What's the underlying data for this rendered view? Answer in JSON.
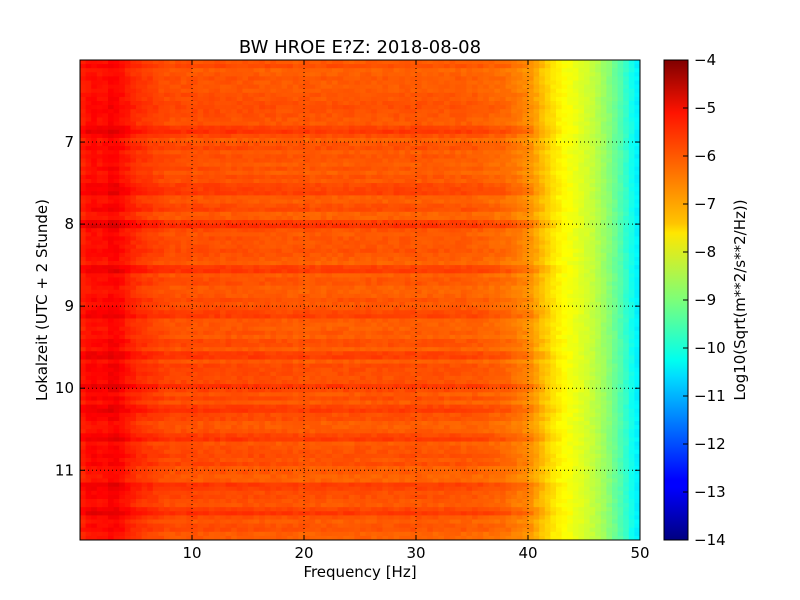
{
  "chart_data": {
    "type": "heatmap",
    "title": "BW HROE E?Z: 2018-08-08",
    "xlabel": "Frequency [Hz]",
    "ylabel": "Lokalzeit (UTC + 2 Stunde)",
    "xlim": [
      0,
      50
    ],
    "ylim": [
      6.0,
      11.85
    ],
    "y_inverted": true,
    "grid": true,
    "x_ticks": [
      10,
      20,
      30,
      40,
      50
    ],
    "x_tick_labels": [
      "10",
      "20",
      "30",
      "40",
      "50"
    ],
    "y_ticks": [
      7,
      8,
      9,
      10,
      11
    ],
    "y_tick_labels": [
      "7",
      "8",
      "9",
      "10",
      "11"
    ],
    "colorbar": {
      "label": "Log10(Sqrt(m**2/s**2/Hz))",
      "range": [
        -14,
        -4
      ],
      "ticks": [
        -4,
        -5,
        -6,
        -7,
        -8,
        -9,
        -10,
        -11,
        -12,
        -13,
        -14
      ],
      "tick_labels": [
        "−4",
        "−5",
        "−6",
        "−7",
        "−8",
        "−9",
        "−10",
        "−11",
        "−12",
        "−13",
        "−14"
      ],
      "colormap": "jet"
    },
    "spectrum_profile": {
      "frequency_hz": [
        0,
        1,
        2,
        3,
        5,
        8,
        10,
        15,
        20,
        25,
        30,
        35,
        38,
        40,
        41,
        42,
        43,
        44,
        45,
        46,
        47,
        48,
        49,
        50
      ],
      "log10_amplitude": [
        -5.6,
        -5.3,
        -5.4,
        -5.2,
        -5.7,
        -6.0,
        -6.0,
        -6.05,
        -6.1,
        -6.1,
        -6.1,
        -6.15,
        -6.3,
        -6.6,
        -7.0,
        -7.4,
        -7.7,
        -7.9,
        -8.1,
        -8.4,
        -8.8,
        -9.3,
        -9.9,
        -10.5
      ]
    },
    "noise_bands_hour": [
      6.85,
      7.55,
      7.6,
      8.0,
      8.55,
      9.1,
      9.6,
      10.0,
      10.25,
      10.6,
      11.2,
      11.5
    ]
  }
}
